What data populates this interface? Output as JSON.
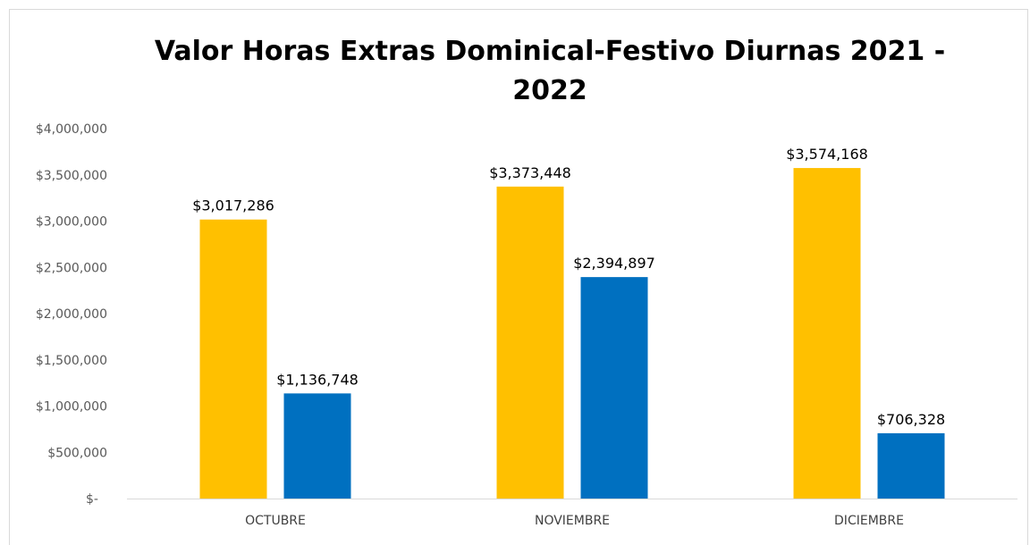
{
  "chart_data": {
    "type": "bar",
    "title": "Valor Horas Extras Dominical-Festivo Diurnas 2021 - 2022",
    "xlabel": "",
    "ylabel": "",
    "categories": [
      "OCTUBRE",
      "NOVIEMBRE",
      "DICIEMBRE"
    ],
    "series": [
      {
        "color": "#FFC000",
        "values": [
          3017286,
          3373448,
          3574168
        ],
        "labels": [
          "$3,017,286",
          "$3,373,448",
          "$3,574,168"
        ]
      },
      {
        "color": "#0070C0",
        "values": [
          1136748,
          2394897,
          706328
        ],
        "labels": [
          "$1,136,748",
          "$2,394,897",
          "$706,328"
        ]
      }
    ],
    "ylim": [
      0,
      4000000
    ],
    "yticks": [
      0,
      500000,
      1000000,
      1500000,
      2000000,
      2500000,
      3000000,
      3500000,
      4000000
    ],
    "ytick_labels": [
      "$-",
      "$500,000",
      "$1,000,000",
      "$1,500,000",
      "$2,000,000",
      "$2,500,000",
      "$3,000,000",
      "$3,500,000",
      "$4,000,000"
    ],
    "grid": false,
    "legend": "none"
  }
}
